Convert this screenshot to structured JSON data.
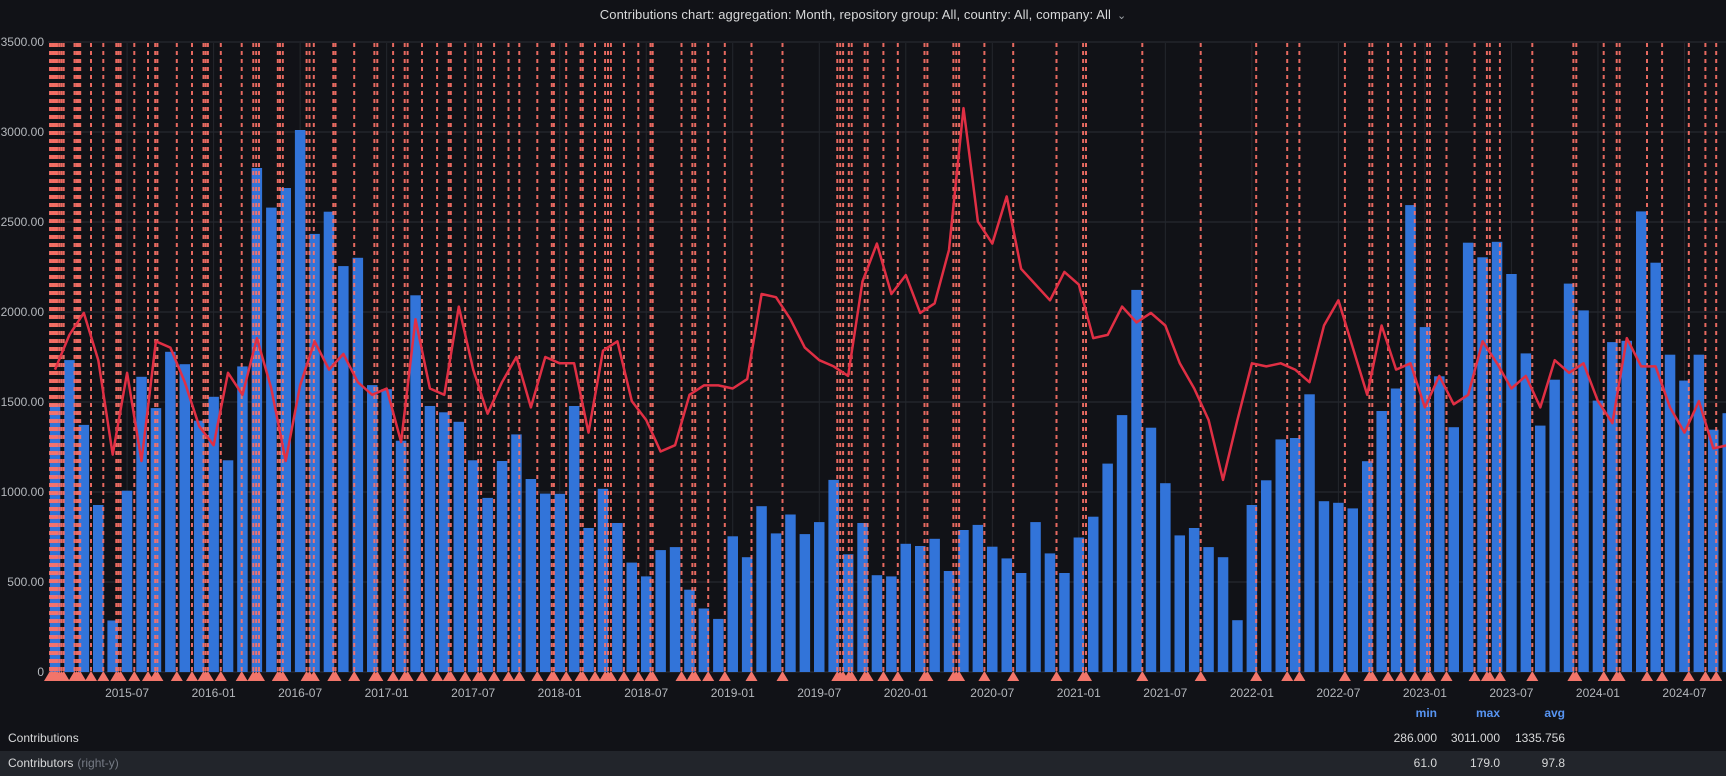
{
  "title": {
    "text": "Contributions chart: aggregation: Month, repository group: All, country: All, company: All",
    "chevron_icon": "⌄"
  },
  "y_axis": {
    "labels": [
      "3500.00",
      "3000.00",
      "2500.00",
      "2000.00",
      "1500.00",
      "1000.00",
      "500.00",
      "0"
    ],
    "values": [
      3500,
      3000,
      2500,
      2000,
      1500,
      1000,
      500,
      0
    ]
  },
  "x_axis": {
    "ticks": [
      {
        "label": "2015-07",
        "month_index": 5
      },
      {
        "label": "2016-01",
        "month_index": 11
      },
      {
        "label": "2016-07",
        "month_index": 17
      },
      {
        "label": "2017-01",
        "month_index": 23
      },
      {
        "label": "2017-07",
        "month_index": 29
      },
      {
        "label": "2018-01",
        "month_index": 35
      },
      {
        "label": "2018-07",
        "month_index": 41
      },
      {
        "label": "2019-01",
        "month_index": 47
      },
      {
        "label": "2019-07",
        "month_index": 53
      },
      {
        "label": "2020-01",
        "month_index": 59
      },
      {
        "label": "2020-07",
        "month_index": 65
      },
      {
        "label": "2021-01",
        "month_index": 71
      },
      {
        "label": "2021-07",
        "month_index": 77
      },
      {
        "label": "2022-01",
        "month_index": 83
      },
      {
        "label": "2022-07",
        "month_index": 89
      },
      {
        "label": "2023-01",
        "month_index": 95
      },
      {
        "label": "2023-07",
        "month_index": 101
      },
      {
        "label": "2024-01",
        "month_index": 107
      },
      {
        "label": "2024-07",
        "month_index": 113
      }
    ]
  },
  "legend": {
    "headers": [
      "min",
      "max",
      "avg"
    ],
    "rows": [
      {
        "label": "Contributions",
        "suffix": "",
        "min": "286.000",
        "max": "3011.000",
        "avg": "1335.756"
      },
      {
        "label": "Contributors",
        "suffix": "(right-y)",
        "min": "61.0",
        "max": "179.0",
        "avg": "97.8"
      }
    ]
  },
  "colors": {
    "background": "#111217",
    "bar": "#3274d9",
    "line": "#e02f44",
    "annotation": "#ff7368",
    "triangle": "#f2756a",
    "grid": "#2b2e35",
    "grid_vertical": "#24272d",
    "axis_text": "#b4b7bc",
    "legend_header": "#5794f2",
    "legend_alt_row": "#22252b",
    "title_text": "#d8d9da"
  },
  "chart_data": {
    "type": "bar",
    "aggregation": "Month",
    "start_month": "2015-02",
    "end_month": "2024-10",
    "month_count": 117,
    "y_left": {
      "min": 0,
      "max": 3500,
      "step": 500
    },
    "y_right": {
      "min": 0,
      "max": 200,
      "left_units_per_right_unit": 17.5
    },
    "grid": true,
    "series": [
      {
        "name": "Contributions",
        "type": "bar",
        "axis": "left",
        "values": [
          1490,
          1733,
          1373,
          928,
          286,
          1007,
          1640,
          1466,
          1779,
          1710,
          1396,
          1529,
          1176,
          1698,
          2800,
          2580,
          2689,
          3011,
          2434,
          2557,
          2255,
          2301,
          1594,
          1571,
          1285,
          2093,
          1478,
          1443,
          1390,
          1176,
          967,
          1172,
          1320,
          1072,
          991,
          990,
          1478,
          800,
          1018,
          828,
          608,
          531,
          677,
          694,
          457,
          353,
          295,
          754,
          638,
          921,
          770,
          875,
          766,
          833,
          1067,
          654,
          828,
          538,
          531,
          712,
          700,
          740,
          561,
          789,
          817,
          696,
          631,
          550,
          833,
          659,
          550,
          747,
          863,
          1158,
          1427,
          2123,
          1357,
          1049,
          759,
          800,
          694,
          638,
          288,
          928,
          1065,
          1292,
          1300,
          1543,
          949,
          940,
          909,
          1171,
          1450,
          1575,
          2594,
          1916,
          1643,
          1360,
          2385,
          2304,
          2390,
          2211,
          1770,
          1369,
          1624,
          2158,
          2009,
          1508,
          1833,
          1840,
          2559,
          2274,
          1763,
          1619,
          1763,
          1346,
          1438
        ]
      },
      {
        "name": "Contributors",
        "type": "line",
        "axis": "right",
        "values": [
          96,
          107,
          114,
          99,
          69,
          95,
          67,
          105,
          103,
          92,
          78,
          72,
          95,
          88,
          106,
          90,
          67,
          91,
          105,
          96,
          101,
          92,
          88,
          90,
          73,
          112,
          90,
          88,
          116,
          96,
          82,
          92,
          100,
          84,
          100,
          98,
          98,
          76,
          102,
          105,
          86,
          80,
          70,
          72,
          88,
          91,
          91,
          90,
          93,
          120,
          119,
          112,
          103,
          99,
          97,
          94,
          124,
          136,
          120,
          126,
          114,
          117,
          134,
          179,
          143,
          136,
          151,
          128,
          123,
          118,
          127,
          123,
          106,
          107,
          116,
          111,
          114,
          110,
          98,
          90,
          80,
          61,
          80,
          98,
          97,
          98,
          96,
          92,
          110,
          118,
          103,
          88,
          110,
          96,
          98,
          84,
          94,
          85,
          88,
          105,
          98,
          90,
          94,
          84,
          99,
          95,
          98,
          86,
          79,
          106,
          97,
          97,
          84,
          76,
          86,
          71,
          72
        ]
      }
    ],
    "annotations_month_x": [
      -0.35,
      -0.25,
      -0.15,
      -0.05,
      0.05,
      0.15,
      0.3,
      0.45,
      0.6,
      1.35,
      1.5,
      1.62,
      1.75,
      2.5,
      3.35,
      4.25,
      4.4,
      4.55,
      5.5,
      6.45,
      6.95,
      7.1,
      8.45,
      9.5,
      10.3,
      10.45,
      10.6,
      11.5,
      12.95,
      13.75,
      13.95,
      14.15,
      15.45,
      15.6,
      15.8,
      17.45,
      17.65,
      17.95,
      19.3,
      19.45,
      20.75,
      22.15,
      22.35,
      23.45,
      24.25,
      24.45,
      25.45,
      26.5,
      27.3,
      27.45,
      28.45,
      29.35,
      29.55,
      30.45,
      31.45,
      32.2,
      33.45,
      34.45,
      34.6,
      35.45,
      36.45,
      36.6,
      37.45,
      38.15,
      38.35,
      38.55,
      39.45,
      40.45,
      41.3,
      41.45,
      43.45,
      44.2,
      44.4,
      45.3,
      46.45,
      48.3,
      50.45,
      54.25,
      54.45,
      54.65,
      55.05,
      55.25,
      56.15,
      56.35,
      57.45,
      58.45,
      60.3,
      60.5,
      62.3,
      62.5,
      62.7,
      64.45,
      66.45,
      69.45,
      71.3,
      71.5,
      75.4,
      79.45,
      83.3,
      85.45,
      86.3,
      89.45,
      91.15,
      91.35,
      92.45,
      93.35,
      94.3,
      95.15,
      95.35,
      96.5,
      98.45,
      99.3,
      99.5,
      100.2,
      102.45,
      105.3,
      105.5,
      107.4,
      108.3,
      108.5,
      110.4,
      111.45,
      113.3,
      114.45,
      115.2
    ]
  }
}
